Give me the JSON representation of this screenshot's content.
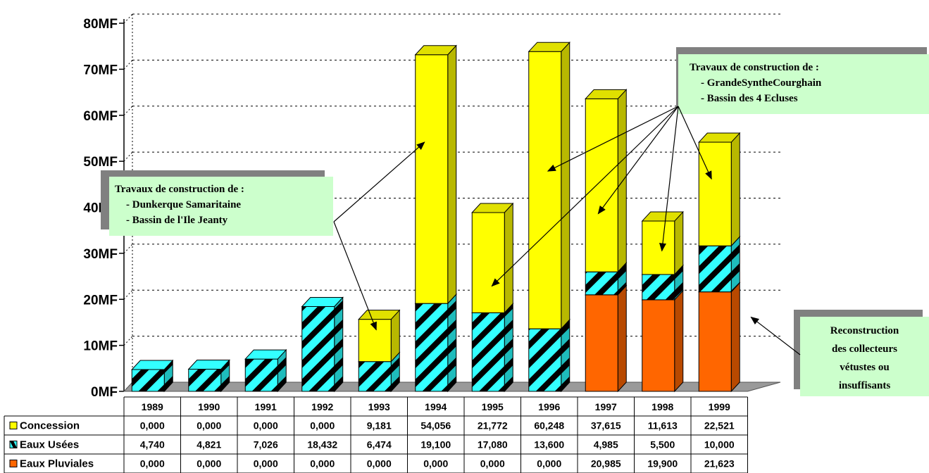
{
  "chart_data": {
    "type": "bar",
    "stacked": true,
    "three_d": true,
    "categories": [
      "1989",
      "1990",
      "1991",
      "1992",
      "1993",
      "1994",
      "1995",
      "1996",
      "1997",
      "1998",
      "1999"
    ],
    "series": [
      {
        "name": "Eaux Pluviales",
        "values": [
          0,
          0,
          0,
          0,
          0,
          0,
          0,
          0,
          20.985,
          19.9,
          21.623
        ],
        "display": [
          "0,000",
          "0,000",
          "0,000",
          "0,000",
          "0,000",
          "0,000",
          "0,000",
          "0,000",
          "20,985",
          "19,900",
          "21,623"
        ],
        "color": "#ff6600",
        "pattern": "solid"
      },
      {
        "name": "Eaux Usées",
        "values": [
          4.74,
          4.821,
          7.026,
          18.432,
          6.474,
          19.1,
          17.08,
          13.6,
          4.985,
          5.5,
          10.0
        ],
        "display": [
          "4,740",
          "4,821",
          "7,026",
          "18,432",
          "6,474",
          "19,100",
          "17,080",
          "13,600",
          "4,985",
          "5,500",
          "10,000"
        ],
        "color": "#33ffff",
        "pattern": "diagonal-stripes"
      },
      {
        "name": "Concession",
        "values": [
          0,
          0,
          0,
          0,
          9.181,
          54.056,
          21.772,
          60.248,
          37.615,
          11.613,
          22.521
        ],
        "display": [
          "0,000",
          "0,000",
          "0,000",
          "0,000",
          "9,181",
          "54,056",
          "21,772",
          "60,248",
          "37,615",
          "11,613",
          "22,521"
        ],
        "color": "#ffff00",
        "pattern": "solid"
      }
    ],
    "table_order": [
      "Concession",
      "Eaux Usées",
      "Eaux Pluviales"
    ],
    "y_ticks": [
      "0MF",
      "10MF",
      "20MF",
      "30MF",
      "40MF",
      "50MF",
      "60MF",
      "70MF",
      "80MF"
    ],
    "ylim": [
      0,
      80
    ],
    "grid": true,
    "data_table": true,
    "annotations": [
      {
        "name": "note-left",
        "lines": [
          "Travaux de construction de :",
          "- Dunkerque Samaritaine",
          "- Bassin de l'Ile Jeanty"
        ],
        "targets": [
          "1993",
          "1994"
        ]
      },
      {
        "name": "note-right",
        "lines": [
          "Travaux de construction de :",
          "- GrandeSyntheCourghain",
          "- Bassin des 4 Ecluses"
        ],
        "targets": [
          "1995",
          "1996",
          "1997",
          "1998",
          "1999"
        ]
      },
      {
        "name": "note-bottom-right",
        "lines": [
          "Reconstruction",
          "des collecteurs",
          "vétustes ou",
          "insuffisants"
        ],
        "targets": [
          "1999"
        ]
      }
    ]
  }
}
